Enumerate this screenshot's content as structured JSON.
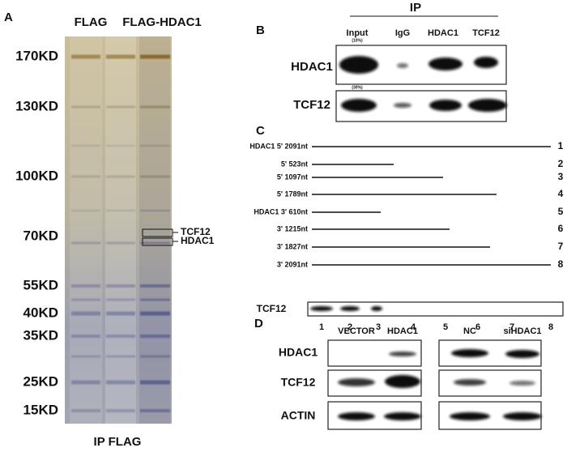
{
  "panel_a": {
    "label": "A",
    "lanes": [
      "FLAG",
      "FLAG-HDAC1"
    ],
    "markers": [
      "170KD",
      "130KD",
      "100KD",
      "70KD",
      "55KD",
      "40KD",
      "35KD",
      "25KD",
      "15KD"
    ],
    "bands": [
      "TCF12",
      "HDAC1"
    ],
    "footer": "IP FLAG"
  },
  "panel_b": {
    "label": "B",
    "header": "IP",
    "columns": [
      "Input",
      "IgG",
      "HDAC1",
      "TCF12"
    ],
    "input_note": "(10%)",
    "input_note_2": "(30%)",
    "rows": [
      "HDAC1",
      "TCF12"
    ]
  },
  "panel_c": {
    "label": "C",
    "constructs": [
      {
        "label": "HDAC1 5' 2091nt",
        "number": 1
      },
      {
        "label": "5' 523nt",
        "number": 2
      },
      {
        "label": "5' 1097nt",
        "number": 3
      },
      {
        "label": "5' 1789nt",
        "number": 4
      },
      {
        "label": "HDAC1 3' 610nt",
        "number": 5
      },
      {
        "label": "3' 1215nt",
        "number": 6
      },
      {
        "label": "3' 1827nt",
        "number": 7
      },
      {
        "label": "3' 2091nt",
        "number": 8
      }
    ],
    "blot_label": "TCF12",
    "lanes": [
      1,
      2,
      3,
      4,
      5,
      6,
      7,
      8
    ]
  },
  "panel_d": {
    "label": "D",
    "columns": [
      "VECTOR",
      "HDAC1",
      "NC",
      "siHDAC1"
    ],
    "rows": [
      "HDAC1",
      "TCF12",
      "ACTIN"
    ]
  }
}
